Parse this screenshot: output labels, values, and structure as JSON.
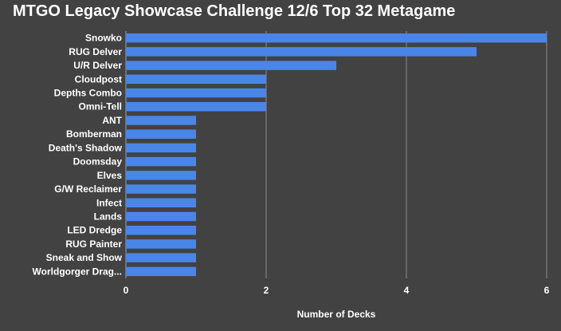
{
  "chart_data": {
    "type": "bar",
    "orientation": "horizontal",
    "title": "MTGO Legacy Showcase Challenge 12/6 Top 32 Metagame",
    "xlabel": "Number of Decks",
    "ylabel": "",
    "xlim": [
      0,
      6
    ],
    "xticks": [
      0,
      2,
      4,
      6
    ],
    "grid": true,
    "bar_color": "#4a86e8",
    "background_color": "#424242",
    "categories": [
      "Snowko",
      "RUG Delver",
      "U/R Delver",
      "Cloudpost",
      "Depths Combo",
      "Omni-Tell",
      "ANT",
      "Bomberman",
      "Death's Shadow",
      "Doomsday",
      "Elves",
      "G/W Reclaimer",
      "Infect",
      "Lands",
      "LED Dredge",
      "RUG Painter",
      "Sneak and Show",
      "Worldgorger Drag..."
    ],
    "values": [
      6,
      5,
      3,
      2,
      2,
      2,
      1,
      1,
      1,
      1,
      1,
      1,
      1,
      1,
      1,
      1,
      1,
      1
    ]
  }
}
